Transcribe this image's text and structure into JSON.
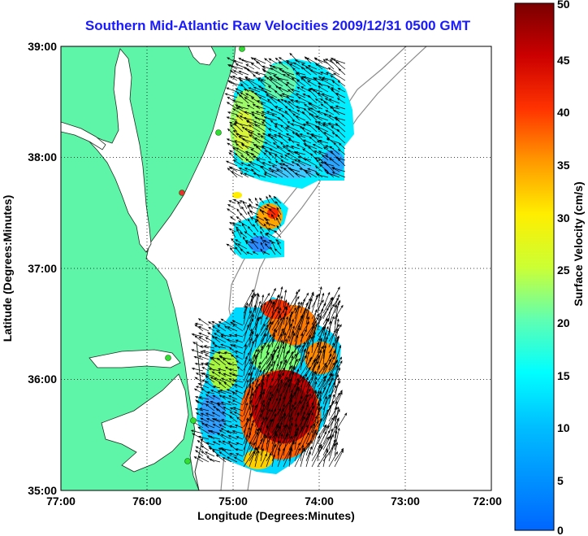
{
  "title": "Southern Mid-Atlantic Raw Velocities 2009/12/31 0500 GMT",
  "map": {
    "xlabel": "Longitude (Degrees:Minutes)",
    "ylabel": "Latitude (Degrees:Minutes)",
    "x_ticks": [
      "77:00",
      "76:00",
      "75:00",
      "74:00",
      "73:00",
      "72:00"
    ],
    "y_ticks": [
      "39:00",
      "38:00",
      "37:00",
      "36:00",
      "35:00"
    ],
    "lon_range": [
      -77,
      -72
    ],
    "lat_range": [
      35,
      39
    ],
    "grid": "dotted",
    "land_color": "#5ef5a8",
    "ocean_color": "#ffffff",
    "station_color": "#33dd33",
    "station_alert_color": "#e83030"
  },
  "colorbar": {
    "label": "Surface Velocity (cm/s)",
    "min": 0,
    "max": 50,
    "ticks": [
      "50",
      "45",
      "40",
      "35",
      "30",
      "25",
      "20",
      "15",
      "10",
      "5",
      "0"
    ],
    "colormap": "jet"
  }
}
